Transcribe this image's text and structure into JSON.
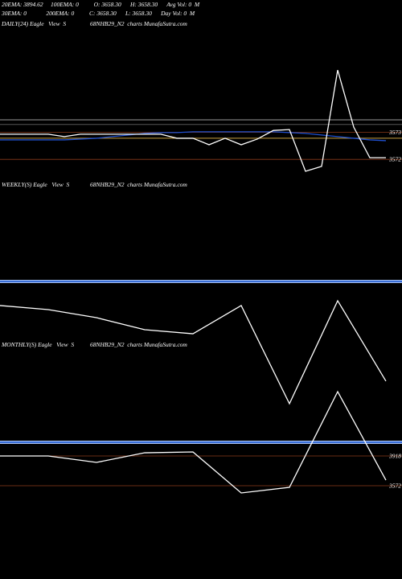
{
  "header": {
    "line1": "20EMA: 3894.62     100EMA: 0          O: 3658.30      H: 3658.30      Avg Vol: 0  M",
    "line2": "30EMA: 0             200EMA: 0          C: 3658.30      L: 3658.30      Day Vol: 0  M"
  },
  "chart_data": [
    {
      "type": "line",
      "title": "DAILY(24) Eagle   View  S",
      "subtitle": "68NHB29_N2  charts MunafaSutra.com",
      "categories": [
        null,
        null,
        null,
        null,
        null,
        null,
        null,
        null,
        null,
        null,
        null,
        null,
        null,
        null,
        null,
        null,
        null,
        null,
        null,
        null,
        null,
        null,
        null,
        null,
        null
      ],
      "series": [
        {
          "color": "#1f4fd0",
          "values": [
            3572.72,
            3572.72,
            3572.72,
            3572.72,
            3572.72,
            3572.75,
            3572.78,
            3572.84,
            3572.9,
            3572.96,
            3572.99,
            3572.99,
            3573.02,
            3573.02,
            3573.02,
            3573.02,
            3573.02,
            3573.02,
            3572.99,
            3572.96,
            3572.9,
            3572.84,
            3572.78,
            3572.72,
            3572.69
          ]
        },
        {
          "color": "#ffffff",
          "values": [
            3572.93,
            3572.93,
            3572.93,
            3572.93,
            3572.84,
            3572.93,
            3572.93,
            3572.93,
            3572.93,
            3572.93,
            3572.93,
            3572.78,
            3572.78,
            3572.54,
            3572.78,
            3572.54,
            3572.75,
            3573.07,
            3573.1,
            3571.56,
            3571.74,
            3575.3,
            3573.19,
            3572.06,
            3572.06
          ]
        }
      ],
      "hlines": [
        {
          "value": 3573.46,
          "color": "#9a9a9a"
        },
        {
          "value": 3573.29,
          "color": "#555555"
        },
        {
          "value": 3572.78,
          "color": "#c8a040"
        }
      ],
      "ylim": [
        3571.5,
        3576.7
      ],
      "yticks": [
        3573,
        3572
      ],
      "grid_color": "#8a3a1a"
    },
    {
      "type": "line",
      "title": "WEEKLY(S) Eagle   View  S",
      "subtitle": "68NHB29_N2  charts MunafaSutra.com",
      "categories": [
        null,
        null,
        null,
        null,
        null,
        null,
        null,
        null,
        null
      ],
      "series": [
        {
          "color": "#ffffff",
          "values": [
            3797,
            3750,
            3656,
            3516,
            3469,
            3797,
            2656,
            3853,
            2918
          ]
        }
      ],
      "hlines": [
        {
          "value": 4077,
          "color": "#3a6fd8"
        }
      ],
      "ylim": [
        2487.5,
        5105.5
      ],
      "yticks": [],
      "grid_color": "#8a3a1a"
    },
    {
      "type": "line",
      "title": "MONTHLY(S) Eagle   View  S",
      "subtitle": "68NHB29_N2  charts MunafaSutra.com",
      "categories": [
        null,
        null,
        null,
        null,
        null,
        null,
        null,
        null,
        null
      ],
      "series": [
        {
          "color": "#ffffff",
          "values": [
            3918,
            3918,
            3843,
            3955,
            3965,
            3488,
            3553,
            4666,
            3637
          ]
        }
      ],
      "hlines": [
        {
          "value": 4077,
          "color": "#3a6fd8"
        }
      ],
      "ylim": [
        2487.5,
        5105.5
      ],
      "yticks": [
        3918,
        3572
      ],
      "grid_color": "#8a3a1a"
    }
  ]
}
